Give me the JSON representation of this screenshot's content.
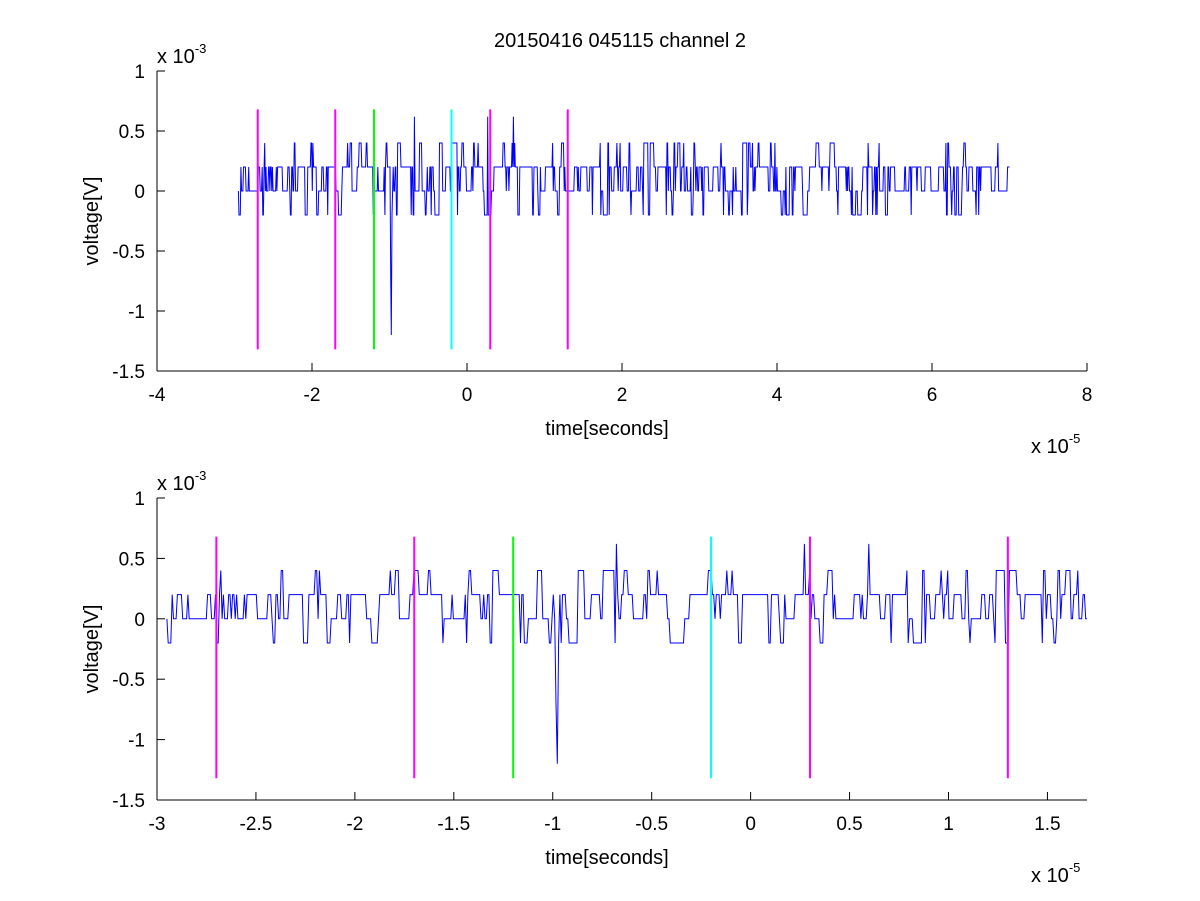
{
  "chart_data": [
    {
      "type": "line",
      "title": "20150416 045115 channel 2",
      "xlabel": "time[seconds]",
      "ylabel": "voltage[V]",
      "x_multiplier_label": "x 10",
      "x_multiplier_exp": "-5",
      "y_multiplier_label": "x 10",
      "y_multiplier_exp": "-3",
      "xlim": [
        -4,
        8
      ],
      "ylim": [
        -1.5,
        1
      ],
      "xticks": [
        -4,
        -2,
        0,
        2,
        4,
        6,
        8
      ],
      "xtick_labels": [
        "-4",
        "-2",
        "0",
        "2",
        "4",
        "6",
        "8"
      ],
      "yticks": [
        -1.5,
        -1,
        -0.5,
        0,
        0.5,
        1
      ],
      "ytick_labels": [
        "-1.5",
        "-1",
        "-0.5",
        "0",
        "0.5",
        "1"
      ],
      "grid": false,
      "series": [
        {
          "color": "#0000ff",
          "x_range": [
            -2.95,
            7.0
          ],
          "baseline_levels": [
            -0.2,
            0,
            0.2,
            0.4
          ],
          "features": [
            {
              "x": -0.98,
              "y": -1.2
            },
            {
              "x": -0.68,
              "y": 0.62
            },
            {
              "x": 0.27,
              "y": 0.62
            },
            {
              "x": 0.6,
              "y": 0.62
            }
          ]
        }
      ],
      "markers": [
        {
          "x": -2.7,
          "y_range": [
            -1.32,
            0.68
          ],
          "color": "#ff00ff"
        },
        {
          "x": -1.7,
          "y_range": [
            -1.32,
            0.68
          ],
          "color": "#ff00ff"
        },
        {
          "x": -1.2,
          "y_range": [
            -1.32,
            0.68
          ],
          "color": "#00ff00"
        },
        {
          "x": -0.2,
          "y_range": [
            -1.32,
            0.68
          ],
          "color": "#00ffff"
        },
        {
          "x": 0.3,
          "y_range": [
            -1.32,
            0.68
          ],
          "color": "#ff00ff"
        },
        {
          "x": 1.3,
          "y_range": [
            -1.32,
            0.68
          ],
          "color": "#ff00ff"
        }
      ]
    },
    {
      "type": "line",
      "xlabel": "time[seconds]",
      "ylabel": "voltage[V]",
      "x_multiplier_label": "x 10",
      "x_multiplier_exp": "-5",
      "y_multiplier_label": "x 10",
      "y_multiplier_exp": "-3",
      "xlim": [
        -3.0,
        1.7
      ],
      "ylim": [
        -1.5,
        1
      ],
      "xticks": [
        -3,
        -2.5,
        -2,
        -1.5,
        -1,
        -0.5,
        0,
        0.5,
        1,
        1.5
      ],
      "xtick_labels": [
        "-3",
        "-2.5",
        "-2",
        "-1.5",
        "-1",
        "-0.5",
        "0",
        "0.5",
        "1",
        "1.5"
      ],
      "yticks": [
        -1.5,
        -1,
        -0.5,
        0,
        0.5,
        1
      ],
      "ytick_labels": [
        "-1.5",
        "-1",
        "-0.5",
        "0",
        "0.5",
        "1"
      ],
      "grid": false,
      "series": [
        {
          "color": "#0000ff",
          "x_range": [
            -2.95,
            1.7
          ],
          "baseline_levels": [
            -0.2,
            0,
            0.2,
            0.4
          ],
          "features": [
            {
              "x": -0.98,
              "y": -1.2
            },
            {
              "x": -0.68,
              "y": 0.62
            },
            {
              "x": 0.27,
              "y": 0.62
            },
            {
              "x": 0.6,
              "y": 0.62
            }
          ]
        }
      ],
      "markers": [
        {
          "x": -2.7,
          "y_range": [
            -1.32,
            0.68
          ],
          "color": "#ff00ff"
        },
        {
          "x": -1.7,
          "y_range": [
            -1.32,
            0.68
          ],
          "color": "#ff00ff"
        },
        {
          "x": -1.2,
          "y_range": [
            -1.32,
            0.68
          ],
          "color": "#00ff00"
        },
        {
          "x": -0.2,
          "y_range": [
            -1.32,
            0.68
          ],
          "color": "#00ffff"
        },
        {
          "x": 0.3,
          "y_range": [
            -1.32,
            0.68
          ],
          "color": "#ff00ff"
        },
        {
          "x": 1.3,
          "y_range": [
            -1.32,
            0.68
          ],
          "color": "#ff00ff"
        }
      ]
    }
  ]
}
